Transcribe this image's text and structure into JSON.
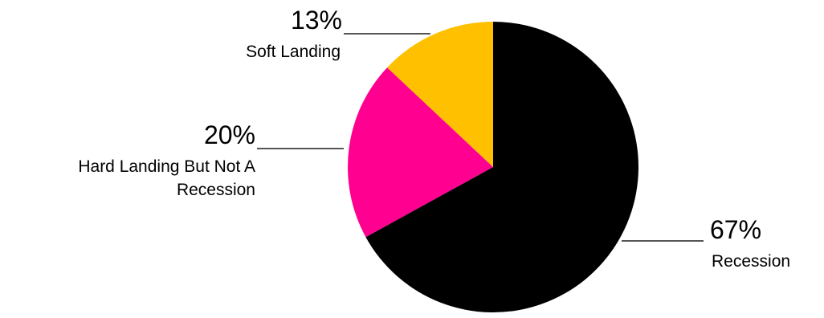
{
  "chart_data": {
    "type": "pie",
    "title": "",
    "start_angle_deg": 0,
    "direction": "clockwise",
    "slices": [
      {
        "label": "Recession",
        "label_lines": [
          "Recession"
        ],
        "value": 67,
        "value_label": "67%",
        "color": "#000000"
      },
      {
        "label": "Hard Landing But Not A Recession",
        "label_lines": [
          "Hard Landing But Not A",
          "Recession"
        ],
        "value": 20,
        "value_label": "20%",
        "color": "#FF0090"
      },
      {
        "label": "Soft Landing",
        "label_lines": [
          "Soft Landing"
        ],
        "value": 13,
        "value_label": "13%",
        "color": "#FFC000"
      }
    ],
    "legend": "none",
    "labels": "outside with leader lines"
  }
}
